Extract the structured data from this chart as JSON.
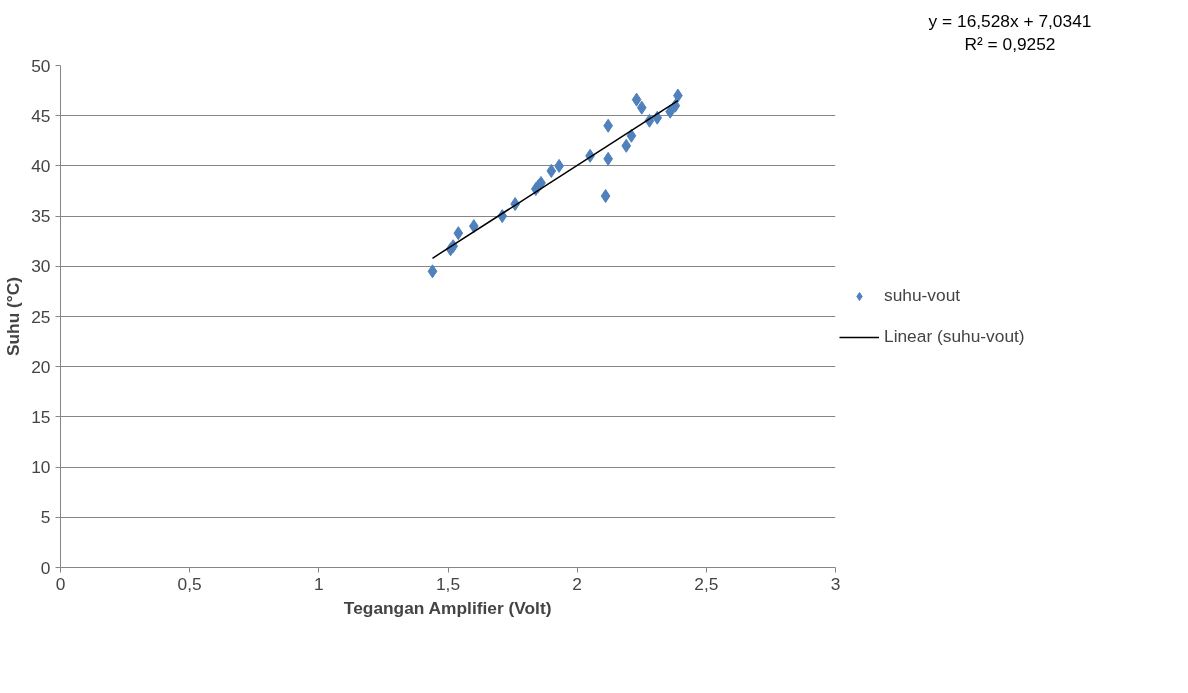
{
  "chart_data": {
    "type": "scatter",
    "xlabel": "Tegangan Amplifier (Volt)",
    "ylabel": "Suhu (°C)",
    "xlim": [
      0,
      3
    ],
    "ylim": [
      0,
      50
    ],
    "xticks": [
      0,
      {
        "value": 0.5,
        "label": "0,5"
      },
      1,
      {
        "value": 1.5,
        "label": "1,5"
      },
      2,
      {
        "value": 2.5,
        "label": "2,5"
      },
      3
    ],
    "yticks": [
      0,
      5,
      10,
      15,
      20,
      25,
      30,
      35,
      40,
      45,
      50
    ],
    "grid": "y",
    "legend": "right",
    "annotations": [
      "y = 16,528x + 7,0341",
      "R² = 0,9252"
    ],
    "series": [
      {
        "name": "suhu-vout",
        "marker": "diamond",
        "color": "#4f81bd",
        "x": [
          1.44,
          1.51,
          1.52,
          1.54,
          1.6,
          1.71,
          1.76,
          1.84,
          1.85,
          1.86,
          1.9,
          1.93,
          2.05,
          2.11,
          2.12,
          2.12,
          2.19,
          2.21,
          2.23,
          2.25,
          2.28,
          2.31,
          2.36,
          2.38,
          2.39
        ],
        "values": [
          29.5,
          31.7,
          32,
          33.3,
          34,
          35,
          36.2,
          37.7,
          38,
          38.3,
          39.5,
          40,
          41,
          37,
          44,
          40.7,
          42,
          43,
          46.6,
          45.8,
          44.5,
          44.8,
          45.4,
          46,
          47
        ]
      },
      {
        "name": "Linear (suhu-vout)",
        "type": "line",
        "color": "#000000",
        "x": [
          1.44,
          2.39
        ],
        "values": [
          30.8,
          46.5
        ]
      }
    ]
  }
}
